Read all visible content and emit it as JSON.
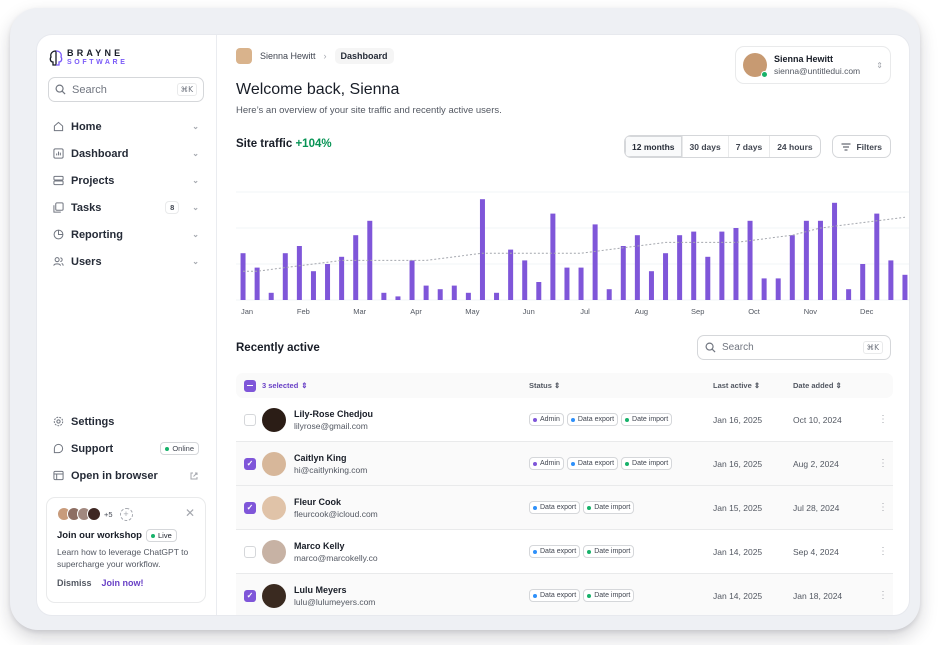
{
  "brand": {
    "line1": "BRAYNE",
    "line2": "SOFTWARE"
  },
  "sidebar": {
    "search_placeholder": "Search",
    "search_shortcut": "⌘K",
    "items": [
      {
        "label": "Home",
        "icon": "home-icon"
      },
      {
        "label": "Dashboard",
        "icon": "bar-chart-icon"
      },
      {
        "label": "Projects",
        "icon": "layers-icon"
      },
      {
        "label": "Tasks",
        "icon": "check-square-icon",
        "count": "8"
      },
      {
        "label": "Reporting",
        "icon": "pie-chart-icon"
      },
      {
        "label": "Users",
        "icon": "users-icon"
      }
    ],
    "bottom": [
      {
        "label": "Settings",
        "icon": "gear-icon"
      },
      {
        "label": "Support",
        "icon": "support-icon",
        "badge": "Online"
      },
      {
        "label": "Open in browser",
        "icon": "browser-icon"
      }
    ],
    "card": {
      "extra_count": "+5",
      "title": "Join our workshop",
      "badge": "Live",
      "description": "Learn how to leverage ChatGPT to supercharge your workflow.",
      "dismiss": "Dismiss",
      "join": "Join now!"
    }
  },
  "header": {
    "breadcrumb_user": "Sienna Hewitt",
    "breadcrumb_current": "Dashboard",
    "user_name": "Sienna Hewitt",
    "user_email": "sienna@untitledui.com",
    "welcome": "Welcome back, Sienna",
    "subtitle": "Here’s an overview of your site traffic and recently active users."
  },
  "traffic": {
    "title": "Site traffic",
    "change": "+104%",
    "ranges": [
      "12 months",
      "30 days",
      "7 days",
      "24 hours"
    ],
    "filters": "Filters"
  },
  "chart_data": {
    "type": "bar",
    "title": "Site traffic",
    "x_tick_labels": [
      "Jan",
      "Feb",
      "Mar",
      "Apr",
      "May",
      "Jun",
      "Jul",
      "Aug",
      "Sep",
      "Oct",
      "Nov",
      "Dec"
    ],
    "bar_color": "#7f56d9",
    "trend_color": "#a4a7ae",
    "bars_per_month": 4,
    "values": [
      13,
      9,
      2,
      13,
      15,
      8,
      10,
      12,
      18,
      22,
      2,
      1,
      11,
      4,
      3,
      4,
      2,
      28,
      2,
      14,
      11,
      5,
      24,
      9,
      9,
      21,
      3,
      15,
      18,
      8,
      13,
      18,
      19,
      12,
      19,
      20,
      22,
      6,
      6,
      18,
      22,
      22,
      27,
      3,
      10,
      24,
      11,
      7
    ],
    "trend": [
      8,
      8,
      8.5,
      9,
      9.5,
      10,
      10.5,
      11,
      11,
      11,
      11,
      11,
      11,
      11,
      11.5,
      12,
      12.5,
      13,
      13,
      13,
      13,
      13,
      13,
      13,
      13,
      13.5,
      14,
      14.5,
      15,
      15.5,
      16,
      16,
      16,
      16,
      16,
      16,
      16.5,
      17,
      17.5,
      18,
      19,
      20,
      20.5,
      21,
      21.5,
      22,
      22.5,
      23
    ],
    "ylim": [
      0,
      30
    ]
  },
  "recent": {
    "title": "Recently active",
    "search_placeholder": "Search",
    "search_shortcut": "⌘K",
    "columns": {
      "selected": "3 selected",
      "status": "Status",
      "last_active": "Last active",
      "date_added": "Date added"
    },
    "rows": [
      {
        "name": "Lily-Rose Chedjou",
        "email": "lilyrose@gmail.com",
        "checked": false,
        "status": [
          "Admin",
          "Data export",
          "Date import"
        ],
        "last_active": "Jan 16, 2025",
        "date_added": "Oct 10, 2024"
      },
      {
        "name": "Caitlyn King",
        "email": "hi@caitlynking.com",
        "checked": true,
        "status": [
          "Admin",
          "Data export",
          "Date import"
        ],
        "last_active": "Jan 16, 2025",
        "date_added": "Aug 2, 2024"
      },
      {
        "name": "Fleur Cook",
        "email": "fleurcook@icloud.com",
        "checked": true,
        "status": [
          "Data export",
          "Date import"
        ],
        "last_active": "Jan 15, 2025",
        "date_added": "Jul 28, 2024"
      },
      {
        "name": "Marco Kelly",
        "email": "marco@marcokelly.co",
        "checked": false,
        "status": [
          "Data export",
          "Date import"
        ],
        "last_active": "Jan 14, 2025",
        "date_added": "Sep 4, 2024"
      },
      {
        "name": "Lulu Meyers",
        "email": "lulu@lulumeyers.com",
        "checked": true,
        "status": [
          "Data export",
          "Date import"
        ],
        "last_active": "Jan 14, 2025",
        "date_added": "Jan 18, 2024"
      }
    ]
  }
}
